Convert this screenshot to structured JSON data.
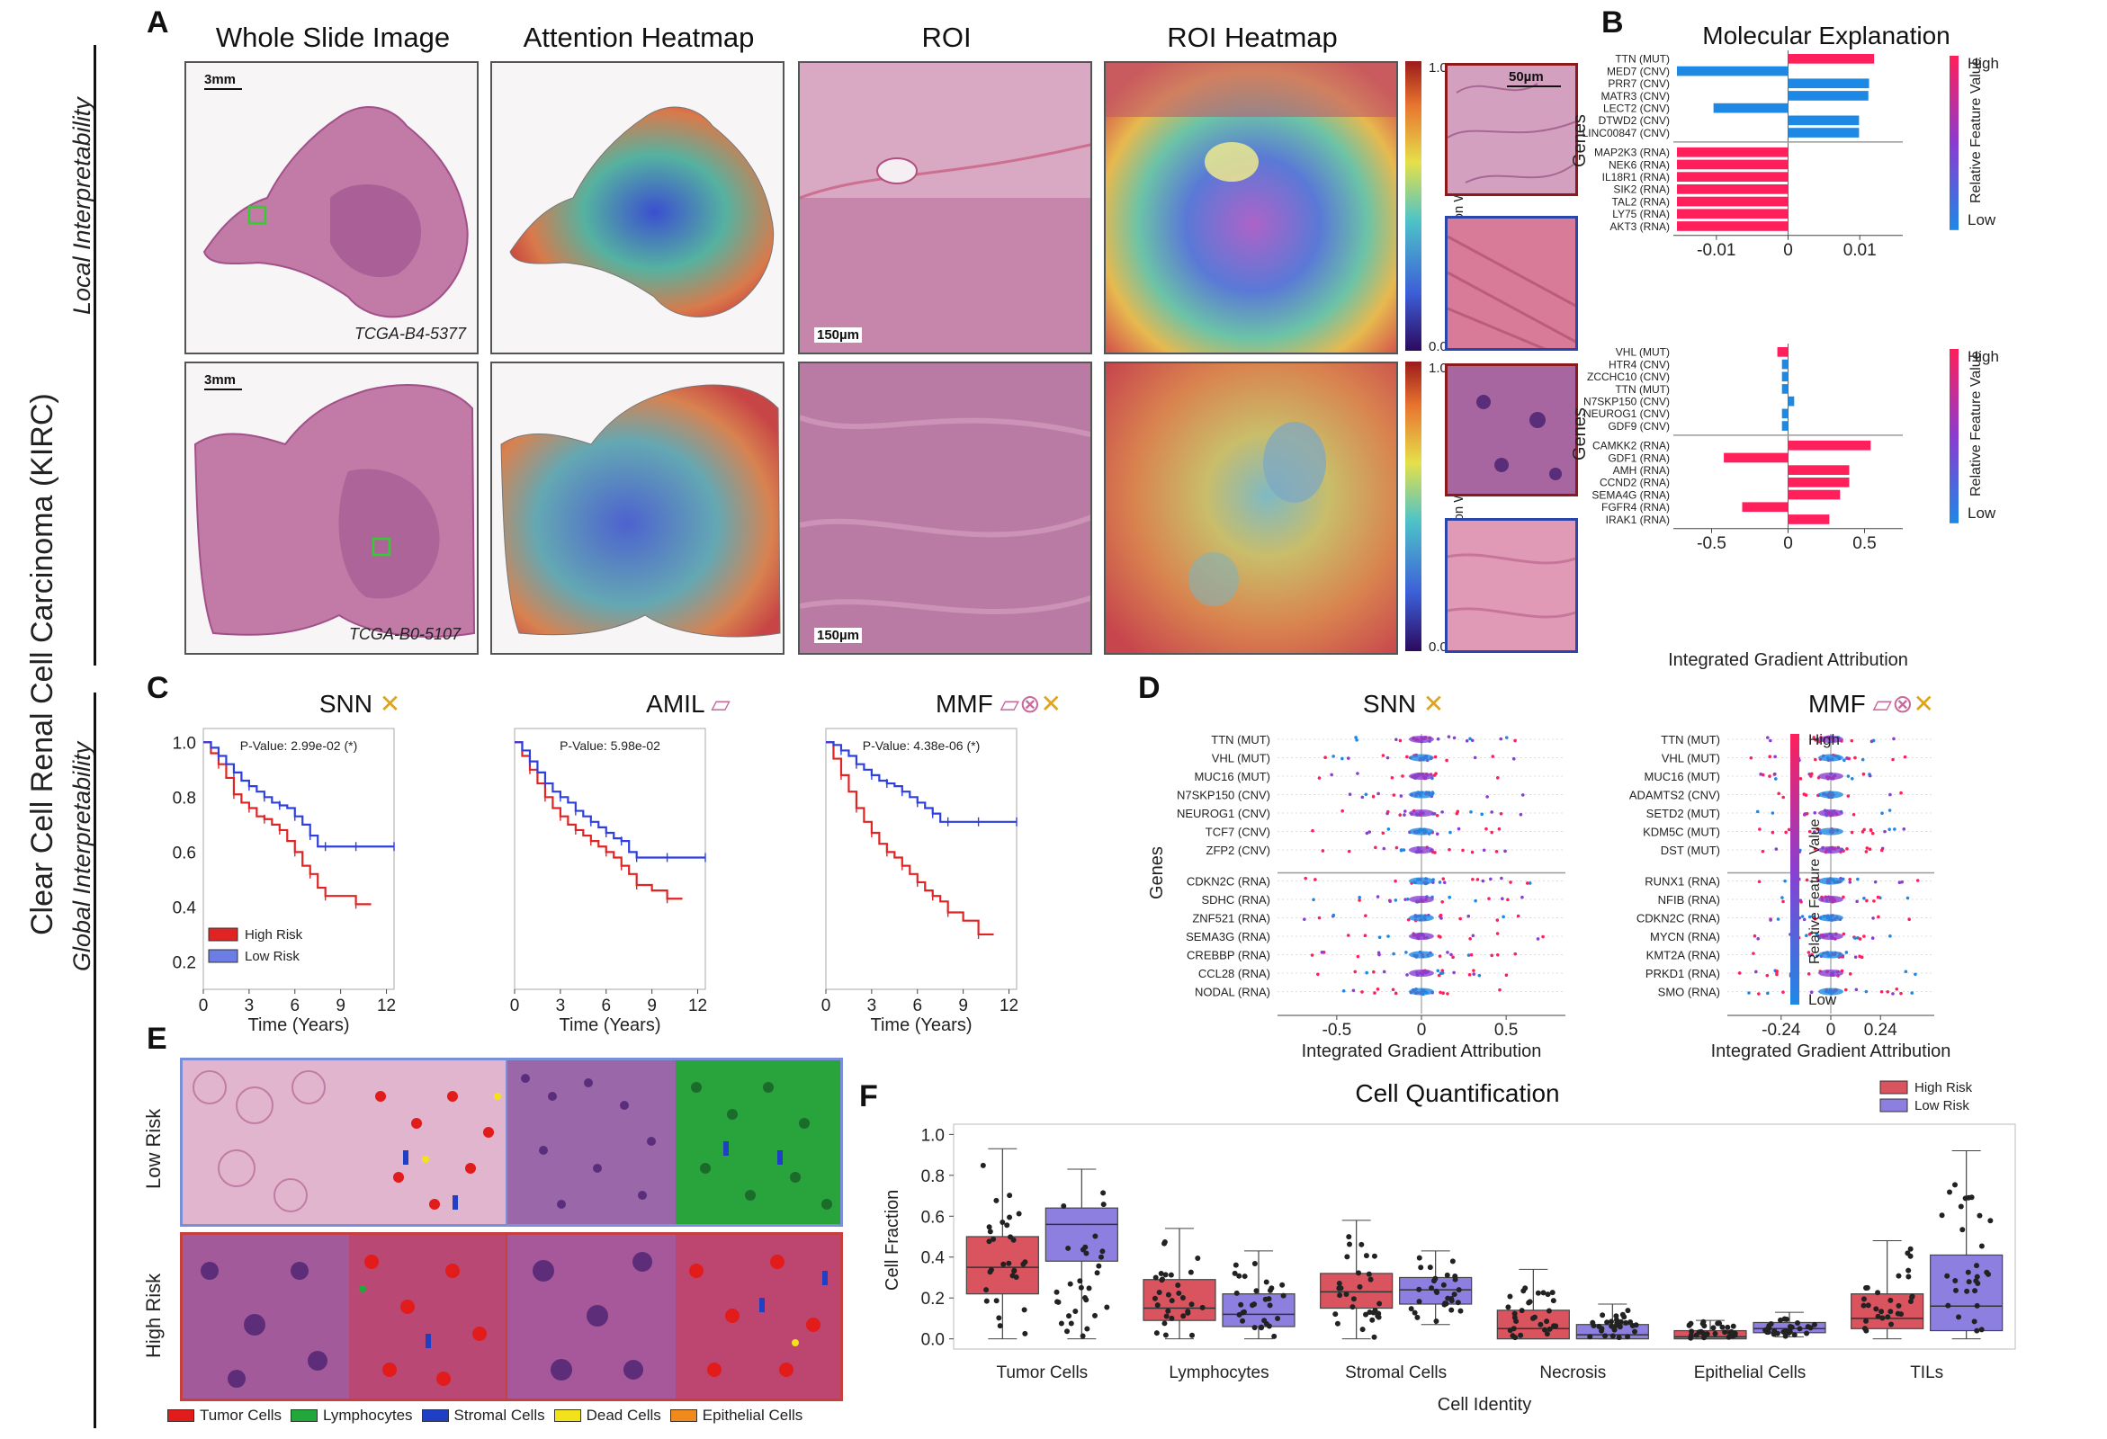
{
  "figure_side_label": "Clear Cell Renal Cell Carcinoma (KIRC)",
  "local_label": "Local Interpretability",
  "global_label": "Global Interpretability",
  "panel_letters": {
    "a": "A",
    "b": "B",
    "c": "C",
    "d": "D",
    "e": "E",
    "f": "F"
  },
  "panel_a": {
    "col_titles": [
      "Whole Slide Image",
      "Attention Heatmap",
      "ROI",
      "ROI Heatmap"
    ],
    "scale_wsi": "3mm",
    "scale_roi": "150µm",
    "scale_patch": "50µm",
    "case_top": "TCGA-B4-5377",
    "case_bottom": "TCGA-B0-5107",
    "colorbar_label": "Attention Weight",
    "colorbar_max": "1.0",
    "colorbar_min": "0.0",
    "colors": {
      "tissue": "#c97aa6",
      "tissue_dark": "#9a4f85",
      "patch_border_top": "#8b1a1a",
      "patch_border_bottom": "#2946a8",
      "roi_box": "#33cc33"
    }
  },
  "panel_b": {
    "title": "Molecular Explanation",
    "ylabel": "Genes",
    "xlabel": "Integrated Gradient Attribution",
    "cbar_high": "High",
    "cbar_low": "Low",
    "cbar_label": "Relative Feature Value"
  },
  "panel_c": {
    "titles": [
      "SNN",
      "AMIL",
      "MMF"
    ],
    "pvalues": [
      "P-Value: 2.99e-02 (*)",
      "P-Value: 5.98e-02",
      "P-Value: 4.38e-06 (*)"
    ],
    "xlabel": "Time (Years)",
    "legend_high": "High Risk",
    "legend_low": "Low Risk"
  },
  "panel_d": {
    "titles": [
      "SNN",
      "MMF"
    ],
    "ylabel": "Genes",
    "xlabel": "Integrated Gradient Attribution",
    "cbar_high": "High",
    "cbar_low": "Low",
    "cbar_label": "Relative Feature Value",
    "snn_genes": [
      "TTN (MUT)",
      "VHL (MUT)",
      "MUC16 (MUT)",
      "N7SKP150 (CNV)",
      "NEUROG1 (CNV)",
      "TCF7 (CNV)",
      "ZFP2 (CNV)",
      "CDKN2C (RNA)",
      "SDHC (RNA)",
      "ZNF521 (RNA)",
      "SEMA3G (RNA)",
      "CREBBP (RNA)",
      "CCL28 (RNA)",
      "NODAL (RNA)"
    ],
    "mmf_genes": [
      "TTN (MUT)",
      "VHL (MUT)",
      "MUC16 (MUT)",
      "ADAMTS2 (CNV)",
      "SETD2 (MUT)",
      "KDM5C (MUT)",
      "DST (MUT)",
      "RUNX1 (RNA)",
      "NFIB (RNA)",
      "CDKN2C (RNA)",
      "MYCN (RNA)",
      "KMT2A (RNA)",
      "PRKD1 (RNA)",
      "SMO (RNA)"
    ],
    "snn_ticks": [
      "-0.5",
      "0",
      "0.5"
    ],
    "mmf_ticks": [
      "-0.24",
      "0",
      "0.24"
    ]
  },
  "panel_e": {
    "row_labels": [
      "Low Risk",
      "High Risk"
    ],
    "legend": [
      {
        "label": "Tumor Cells",
        "color": "#e21b1b"
      },
      {
        "label": "Lymphocytes",
        "color": "#22a83a"
      },
      {
        "label": "Stromal Cells",
        "color": "#1f3fc4"
      },
      {
        "label": "Dead Cells",
        "color": "#f2e21c"
      },
      {
        "label": "Epithelial Cells",
        "color": "#f08a1c"
      }
    ]
  },
  "chart_data": [
    {
      "type": "bar",
      "title": "Molecular Explanation (top, TCGA-B4-5377)",
      "categories": [
        "TTN (MUT)",
        "MED7 (CNV)",
        "PRR7 (CNV)",
        "MATR3 (CNV)",
        "LECT2 (CNV)",
        "DTWD2 (CNV)",
        "LINC00847 (CNV)",
        "MAP2K3 (RNA)",
        "NEK6 (RNA)",
        "IL18R1 (RNA)",
        "SIK2 (RNA)",
        "TAL2 (RNA)",
        "LY75 (RNA)",
        "AKT3 (RNA)"
      ],
      "values": [
        0.012,
        -0.0155,
        0.0113,
        0.0112,
        -0.0104,
        0.0099,
        0.0099,
        -0.0155,
        -0.0155,
        -0.0155,
        -0.0155,
        -0.0155,
        -0.0155,
        -0.0155
      ],
      "value_is_high": [
        true,
        false,
        false,
        false,
        false,
        false,
        false,
        true,
        true,
        true,
        true,
        true,
        true,
        true
      ],
      "xticks": [
        "-0.01",
        "0",
        "0.01"
      ],
      "xlim": [
        -0.016,
        0.016
      ],
      "xlabel": "",
      "ylabel": "Genes"
    },
    {
      "type": "bar",
      "title": "Molecular Explanation (bottom, TCGA-B0-5107)",
      "categories": [
        "VHL (MUT)",
        "HTR4 (CNV)",
        "ZCCHC10 (CNV)",
        "TTN (MUT)",
        "N7SKP150 (CNV)",
        "NEUROG1 (CNV)",
        "GDF9 (CNV)",
        "CAMKK2 (RNA)",
        "GDF1 (RNA)",
        "AMH (RNA)",
        "CCND2 (RNA)",
        "SEMA4G (RNA)",
        "FGFR4 (RNA)",
        "IRAK1 (RNA)"
      ],
      "values": [
        -0.07,
        -0.04,
        -0.04,
        -0.04,
        0.04,
        -0.04,
        -0.04,
        0.54,
        -0.42,
        0.4,
        0.4,
        0.34,
        -0.3,
        0.27
      ],
      "value_is_high": [
        true,
        false,
        false,
        false,
        false,
        false,
        false,
        true,
        true,
        true,
        true,
        true,
        true,
        true
      ],
      "xticks": [
        "-0.5",
        "0",
        "0.5"
      ],
      "xlim": [
        -0.75,
        0.75
      ],
      "xlabel": "Integrated Gradient Attribution",
      "ylabel": "Genes"
    },
    {
      "type": "line",
      "title": "SNN",
      "xlabel": "Time (Years)",
      "ylabel": "",
      "xlim": [
        0,
        12.5
      ],
      "ylim": [
        0.1,
        1.05
      ],
      "xticks": [
        0,
        3,
        6,
        9,
        12
      ],
      "yticks": [
        0.2,
        0.4,
        0.6,
        0.8,
        1.0
      ],
      "series": [
        {
          "name": "High Risk",
          "x": [
            0,
            0.5,
            1,
            1.5,
            2,
            2.5,
            3,
            3.5,
            4,
            4.5,
            5,
            5.5,
            6,
            6.5,
            7,
            7.5,
            8,
            9,
            10,
            11
          ],
          "values": [
            1.0,
            0.96,
            0.92,
            0.87,
            0.81,
            0.78,
            0.76,
            0.73,
            0.72,
            0.7,
            0.68,
            0.64,
            0.6,
            0.55,
            0.52,
            0.47,
            0.44,
            0.44,
            0.41,
            0.41
          ]
        },
        {
          "name": "Low Risk",
          "x": [
            0,
            0.5,
            1,
            1.5,
            2,
            2.5,
            3,
            3.5,
            4,
            4.5,
            5,
            5.5,
            6,
            6.5,
            7,
            7.5,
            8,
            9,
            10,
            11,
            12.5
          ],
          "values": [
            1.0,
            0.98,
            0.95,
            0.92,
            0.89,
            0.86,
            0.84,
            0.82,
            0.8,
            0.78,
            0.77,
            0.76,
            0.73,
            0.7,
            0.66,
            0.62,
            0.62,
            0.62,
            0.62,
            0.62,
            0.62
          ]
        }
      ]
    },
    {
      "type": "line",
      "title": "AMIL",
      "xlabel": "Time (Years)",
      "ylabel": "",
      "xlim": [
        0,
        12.5
      ],
      "ylim": [
        0.1,
        1.05
      ],
      "xticks": [
        0,
        3,
        6,
        9,
        12
      ],
      "yticks": [
        0.2,
        0.4,
        0.6,
        0.8,
        1.0
      ],
      "series": [
        {
          "name": "High Risk",
          "x": [
            0,
            0.5,
            1,
            1.5,
            2,
            2.5,
            3,
            3.5,
            4,
            4.5,
            5,
            5.5,
            6,
            6.5,
            7,
            7.5,
            8,
            9,
            10,
            11
          ],
          "values": [
            1.0,
            0.95,
            0.9,
            0.85,
            0.8,
            0.76,
            0.73,
            0.7,
            0.68,
            0.66,
            0.64,
            0.62,
            0.6,
            0.58,
            0.55,
            0.52,
            0.48,
            0.46,
            0.43,
            0.43
          ]
        },
        {
          "name": "Low Risk",
          "x": [
            0,
            0.5,
            1,
            1.5,
            2,
            2.5,
            3,
            3.5,
            4,
            4.5,
            5,
            5.5,
            6,
            6.5,
            7,
            7.5,
            8,
            9,
            10,
            11,
            12.5
          ],
          "values": [
            1.0,
            0.97,
            0.93,
            0.89,
            0.85,
            0.82,
            0.8,
            0.78,
            0.75,
            0.73,
            0.71,
            0.69,
            0.67,
            0.65,
            0.64,
            0.6,
            0.58,
            0.58,
            0.58,
            0.58,
            0.58
          ]
        }
      ]
    },
    {
      "type": "line",
      "title": "MMF",
      "xlabel": "Time (Years)",
      "ylabel": "",
      "xlim": [
        0,
        12.5
      ],
      "ylim": [
        0.1,
        1.05
      ],
      "xticks": [
        0,
        3,
        6,
        9,
        12
      ],
      "yticks": [
        0.2,
        0.4,
        0.6,
        0.8,
        1.0
      ],
      "series": [
        {
          "name": "High Risk",
          "x": [
            0,
            0.5,
            1,
            1.5,
            2,
            2.5,
            3,
            3.5,
            4,
            4.5,
            5,
            5.5,
            6,
            6.5,
            7,
            7.5,
            8,
            9,
            10,
            11
          ],
          "values": [
            1.0,
            0.94,
            0.88,
            0.82,
            0.76,
            0.71,
            0.67,
            0.63,
            0.6,
            0.58,
            0.55,
            0.52,
            0.49,
            0.46,
            0.44,
            0.42,
            0.38,
            0.35,
            0.3,
            0.3
          ]
        },
        {
          "name": "Low Risk",
          "x": [
            0,
            0.5,
            1,
            1.5,
            2,
            2.5,
            3,
            3.5,
            4,
            4.5,
            5,
            5.5,
            6,
            6.5,
            7,
            7.5,
            8,
            9,
            10,
            11,
            12.5
          ],
          "values": [
            1.0,
            0.99,
            0.97,
            0.95,
            0.92,
            0.9,
            0.88,
            0.86,
            0.85,
            0.84,
            0.82,
            0.8,
            0.78,
            0.76,
            0.74,
            0.71,
            0.71,
            0.71,
            0.71,
            0.71,
            0.71
          ]
        }
      ]
    },
    {
      "type": "box",
      "title": "Cell Quantification",
      "xlabel": "Cell Identity",
      "ylabel": "Cell Fraction",
      "categories": [
        "Tumor Cells",
        "Lymphocytes",
        "Stromal Cells",
        "Necrosis",
        "Epithelial Cells",
        "TILs"
      ],
      "ylim": [
        -0.05,
        1.05
      ],
      "yticks": [
        "0.0",
        "0.2",
        "0.4",
        "0.6",
        "0.8",
        "1.0"
      ],
      "series": [
        {
          "name": "High Risk",
          "color": "#d9545f",
          "boxes": [
            [
              0.0,
              0.22,
              0.35,
              0.5,
              0.93
            ],
            [
              0.0,
              0.09,
              0.15,
              0.29,
              0.54
            ],
            [
              0.0,
              0.15,
              0.23,
              0.32,
              0.58
            ],
            [
              0.0,
              0.0,
              0.05,
              0.14,
              0.34
            ],
            [
              0.0,
              0.0,
              0.01,
              0.04,
              0.09
            ],
            [
              0.0,
              0.05,
              0.1,
              0.22,
              0.48
            ]
          ]
        },
        {
          "name": "Low Risk",
          "color": "#8c7fe0",
          "boxes": [
            [
              0.0,
              0.38,
              0.56,
              0.64,
              0.83
            ],
            [
              0.0,
              0.06,
              0.12,
              0.22,
              0.43
            ],
            [
              0.07,
              0.17,
              0.24,
              0.3,
              0.43
            ],
            [
              0.0,
              0.0,
              0.02,
              0.07,
              0.17
            ],
            [
              0.01,
              0.03,
              0.05,
              0.08,
              0.13
            ],
            [
              0.0,
              0.04,
              0.16,
              0.41,
              0.92
            ]
          ]
        }
      ]
    }
  ]
}
